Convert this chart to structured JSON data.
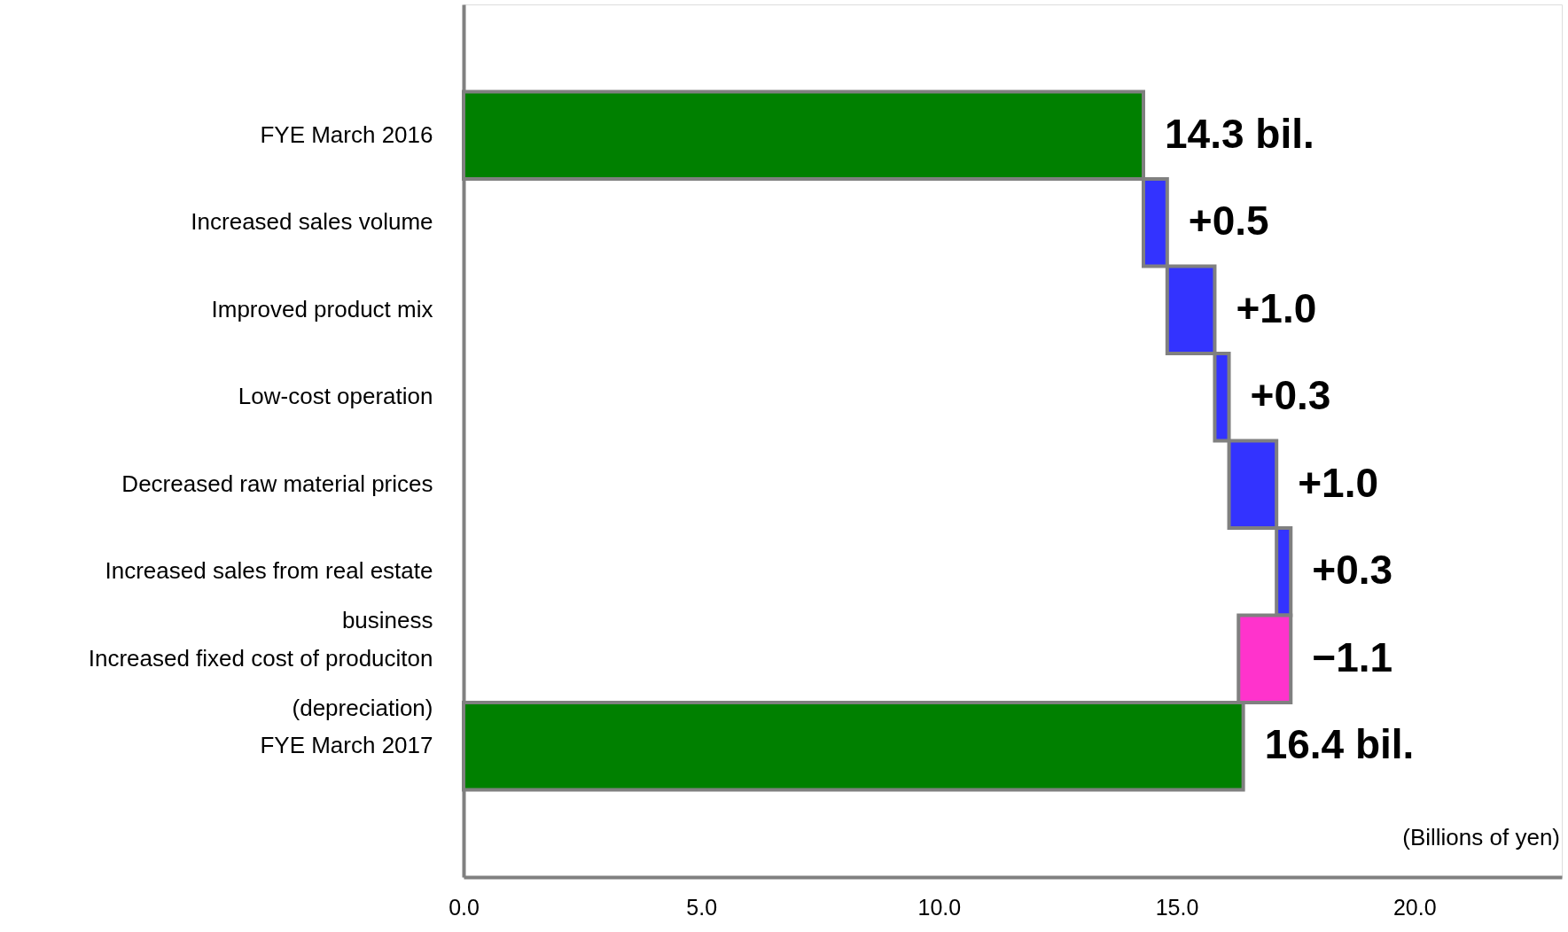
{
  "chart_data": {
    "type": "bar",
    "orientation": "horizontal",
    "categories": [
      "FYE March 2016",
      "Increased sales volume",
      "Improved product mix",
      "Low-cost operation",
      "Decreased raw material prices",
      "Increased sales from real estate business",
      "Increased fixed cost of produciton (depreciation)",
      "FYE March 2017"
    ],
    "values": [
      14.3,
      0.5,
      1.0,
      0.3,
      1.0,
      0.3,
      -1.1,
      16.4
    ],
    "base": [
      0,
      14.3,
      14.8,
      15.8,
      16.1,
      17.1,
      17.4,
      0
    ],
    "colors": [
      "#008000",
      "#3333ff",
      "#3333ff",
      "#3333ff",
      "#3333ff",
      "#3333ff",
      "#ff33cc",
      "#008000"
    ],
    "value_labels": [
      "14.3 bil.",
      "+0.5",
      "+1.0",
      "+0.3",
      "+1.0",
      "+0.3",
      "−1.1",
      "16.4 bil."
    ],
    "xlim": [
      0,
      23.1
    ],
    "xticks": [
      {
        "value": 0,
        "label": "0.0"
      },
      {
        "value": 5,
        "label": "5.0"
      },
      {
        "value": 10,
        "label": "10.0"
      },
      {
        "value": 15,
        "label": "15.0"
      },
      {
        "value": 20,
        "label": "20.0"
      }
    ],
    "annotations": [
      "(Billions of yen)"
    ],
    "grid": false
  }
}
